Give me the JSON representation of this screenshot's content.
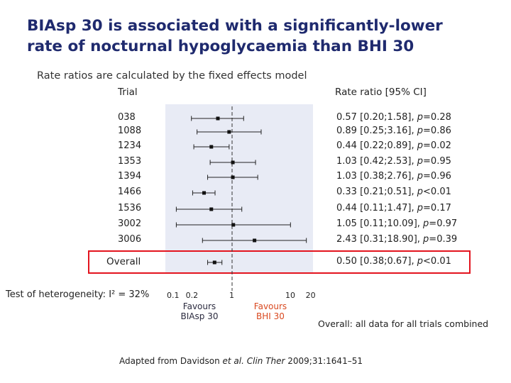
{
  "title_line1": "BIAsp 30 is associated with a significantly-lower",
  "title_line2": "rate of nocturnal hypoglycaemia than BHI 30",
  "subtitle": "Rate ratios are calculated by the fixed effects model",
  "header_trial": "Trial",
  "header_ratio": "Rate ratio [95% CI]",
  "heterogeneity": "Test of heterogeneity: I² = 32%",
  "favour_left": [
    "Favours",
    "BIAsp 30"
  ],
  "favour_right": [
    "Favours",
    "BHI 30"
  ],
  "overall_note": "Overall: all data for all trials combined",
  "source_prefix": "Adapted from Davidson ",
  "source_italic": "et al. Clin Ther",
  "source_suffix": " 2009;31:1641–51",
  "colors": {
    "highlight": "#e3141e",
    "title": "#1f2a6e",
    "plot_bg": "#e8ebf5",
    "bhi": "#d9481f"
  },
  "chart_data": {
    "type": "forest",
    "scale": "log",
    "xlim": [
      0.1,
      20
    ],
    "x_ticks": [
      {
        "value": 0.1,
        "label": "0.1"
      },
      {
        "value": 0.2,
        "label": "0.2"
      },
      {
        "value": 1,
        "label": "1"
      },
      {
        "value": 10,
        "label": "10"
      },
      {
        "value": 20,
        "label": "20"
      }
    ],
    "reference_line": 1,
    "rows": [
      {
        "trial": "038",
        "estimate": 0.57,
        "lower": 0.2,
        "upper": 1.58,
        "ci_text": "0.57 [0.20;1.58], ",
        "p_label": "p",
        "p_text": "=0.28"
      },
      {
        "trial": "1088",
        "estimate": 0.89,
        "lower": 0.25,
        "upper": 3.16,
        "ci_text": "0.89 [0.25;3.16], ",
        "p_label": "p",
        "p_text": "=0.86"
      },
      {
        "trial": "1234",
        "estimate": 0.44,
        "lower": 0.22,
        "upper": 0.89,
        "ci_text": "0.44 [0.22;0.89], ",
        "p_label": "p",
        "p_text": "=0.02"
      },
      {
        "trial": "1353",
        "estimate": 1.03,
        "lower": 0.42,
        "upper": 2.53,
        "ci_text": "1.03 [0.42;2.53], ",
        "p_label": "p",
        "p_text": "=0.95"
      },
      {
        "trial": "1394",
        "estimate": 1.03,
        "lower": 0.38,
        "upper": 2.76,
        "ci_text": "1.03 [0.38;2.76], ",
        "p_label": "p",
        "p_text": "=0.96"
      },
      {
        "trial": "1466",
        "estimate": 0.33,
        "lower": 0.21,
        "upper": 0.51,
        "ci_text": "0.33 [0.21;0.51], ",
        "p_label": "p",
        "p_text": "<0.01"
      },
      {
        "trial": "1536",
        "estimate": 0.44,
        "lower": 0.11,
        "upper": 1.47,
        "ci_text": "0.44 [0.11;1.47], ",
        "p_label": "p",
        "p_text": "=0.17"
      },
      {
        "trial": "3002",
        "estimate": 1.05,
        "lower": 0.11,
        "upper": 10.09,
        "ci_text": "1.05 [0.11;10.09], ",
        "p_label": "p",
        "p_text": "=0.97"
      },
      {
        "trial": "3006",
        "estimate": 2.43,
        "lower": 0.31,
        "upper": 18.9,
        "ci_text": "2.43 [0.31;18.90], ",
        "p_label": "p",
        "p_text": "=0.39"
      }
    ],
    "overall": {
      "trial": "Overall",
      "estimate": 0.5,
      "lower": 0.38,
      "upper": 0.67,
      "ci_text": "0.50 [0.38;0.67], ",
      "p_label": "p",
      "p_text": "<0.01"
    }
  }
}
